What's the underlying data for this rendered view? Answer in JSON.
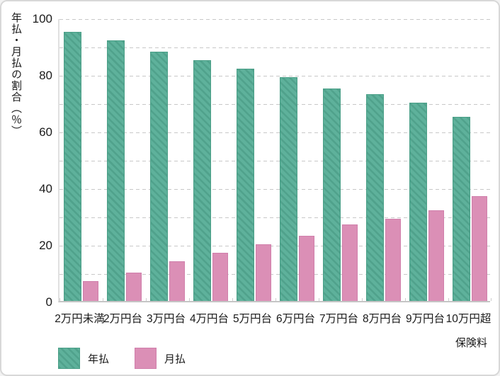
{
  "chart_data": {
    "type": "bar",
    "title": "",
    "categories": [
      "2万円未満",
      "2万円台",
      "3万円台",
      "4万円台",
      "5万円台",
      "6万円台",
      "7万円台",
      "8万円台",
      "9万円台",
      "10万円超"
    ],
    "series": [
      {
        "name": "年払",
        "color": "#5eb19b",
        "border_color": "#4a9f87",
        "hatch": true,
        "values": [
          95,
          92,
          88,
          85,
          82,
          79,
          75,
          73,
          70,
          65
        ]
      },
      {
        "name": "月払",
        "color": "#db8fb6",
        "border_color": "#d07fab",
        "hatch": false,
        "values": [
          7,
          10,
          14,
          17,
          20,
          23,
          27,
          29,
          32,
          37
        ]
      }
    ],
    "ylabel": "年払・月払の割合（％）",
    "xlabel": "保険料",
    "ylim": [
      0,
      100
    ],
    "yticks": [
      0,
      20,
      40,
      60,
      80,
      100
    ],
    "gridline_step": 10,
    "grid": "horizontal-dashed",
    "legend_position": "bottom-left"
  },
  "colors": {
    "grid": "#c8c8c8",
    "axis_line": "#e0e0e0",
    "baseline": "#c5c5c5",
    "text": "#1a1a1a",
    "frame_border": "#d8d8d8",
    "background": "#ffffff"
  }
}
